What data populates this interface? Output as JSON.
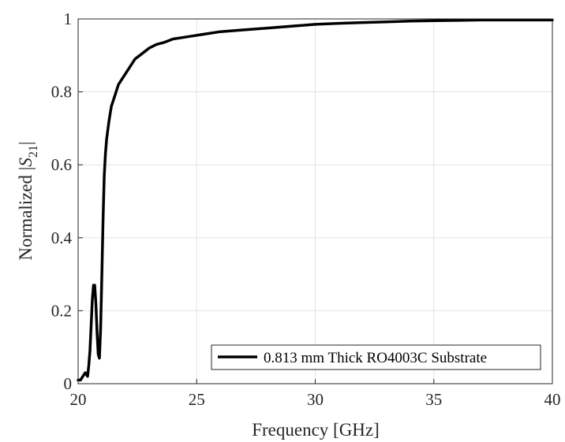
{
  "chart_data": {
    "type": "line",
    "title": "",
    "xlabel": "Frequency [GHz]",
    "ylabel_prefix": "Normalized |",
    "ylabel_var": "S",
    "ylabel_sub": "21",
    "ylabel_suffix": "|",
    "xlim": [
      20,
      40
    ],
    "ylim": [
      0,
      1
    ],
    "xticks": [
      "20",
      "25",
      "30",
      "35",
      "40"
    ],
    "yticks": [
      "0",
      "0.2",
      "0.4",
      "0.6",
      "0.8",
      "1"
    ],
    "grid": true,
    "legend_position": "bottom-right",
    "line_color": "#000000",
    "series": [
      {
        "name": "0.813 mm Thick RO4003C Substrate",
        "x": [
          20.0,
          20.1,
          20.2,
          20.3,
          20.4,
          20.45,
          20.5,
          20.55,
          20.6,
          20.65,
          20.7,
          20.75,
          20.8,
          20.85,
          20.9,
          20.95,
          21.0,
          21.05,
          21.1,
          21.15,
          21.2,
          21.3,
          21.4,
          21.5,
          21.6,
          21.7,
          21.8,
          21.9,
          22.0,
          22.2,
          22.4,
          22.6,
          22.8,
          23.0,
          23.3,
          23.6,
          24.0,
          24.5,
          25.0,
          25.5,
          26.0,
          27.0,
          28.0,
          29.0,
          30.0,
          31.0,
          32.0,
          33.0,
          34.0,
          35.0,
          36.0,
          37.0,
          38.0,
          39.0,
          40.0
        ],
        "y": [
          0.01,
          0.01,
          0.02,
          0.03,
          0.02,
          0.05,
          0.09,
          0.16,
          0.23,
          0.27,
          0.27,
          0.22,
          0.14,
          0.08,
          0.07,
          0.15,
          0.3,
          0.45,
          0.57,
          0.63,
          0.67,
          0.72,
          0.76,
          0.78,
          0.8,
          0.82,
          0.83,
          0.84,
          0.85,
          0.87,
          0.89,
          0.9,
          0.91,
          0.92,
          0.93,
          0.935,
          0.945,
          0.95,
          0.955,
          0.96,
          0.965,
          0.97,
          0.975,
          0.98,
          0.985,
          0.988,
          0.99,
          0.992,
          0.994,
          0.995,
          0.996,
          0.997,
          0.997,
          0.997,
          0.997
        ]
      }
    ]
  }
}
